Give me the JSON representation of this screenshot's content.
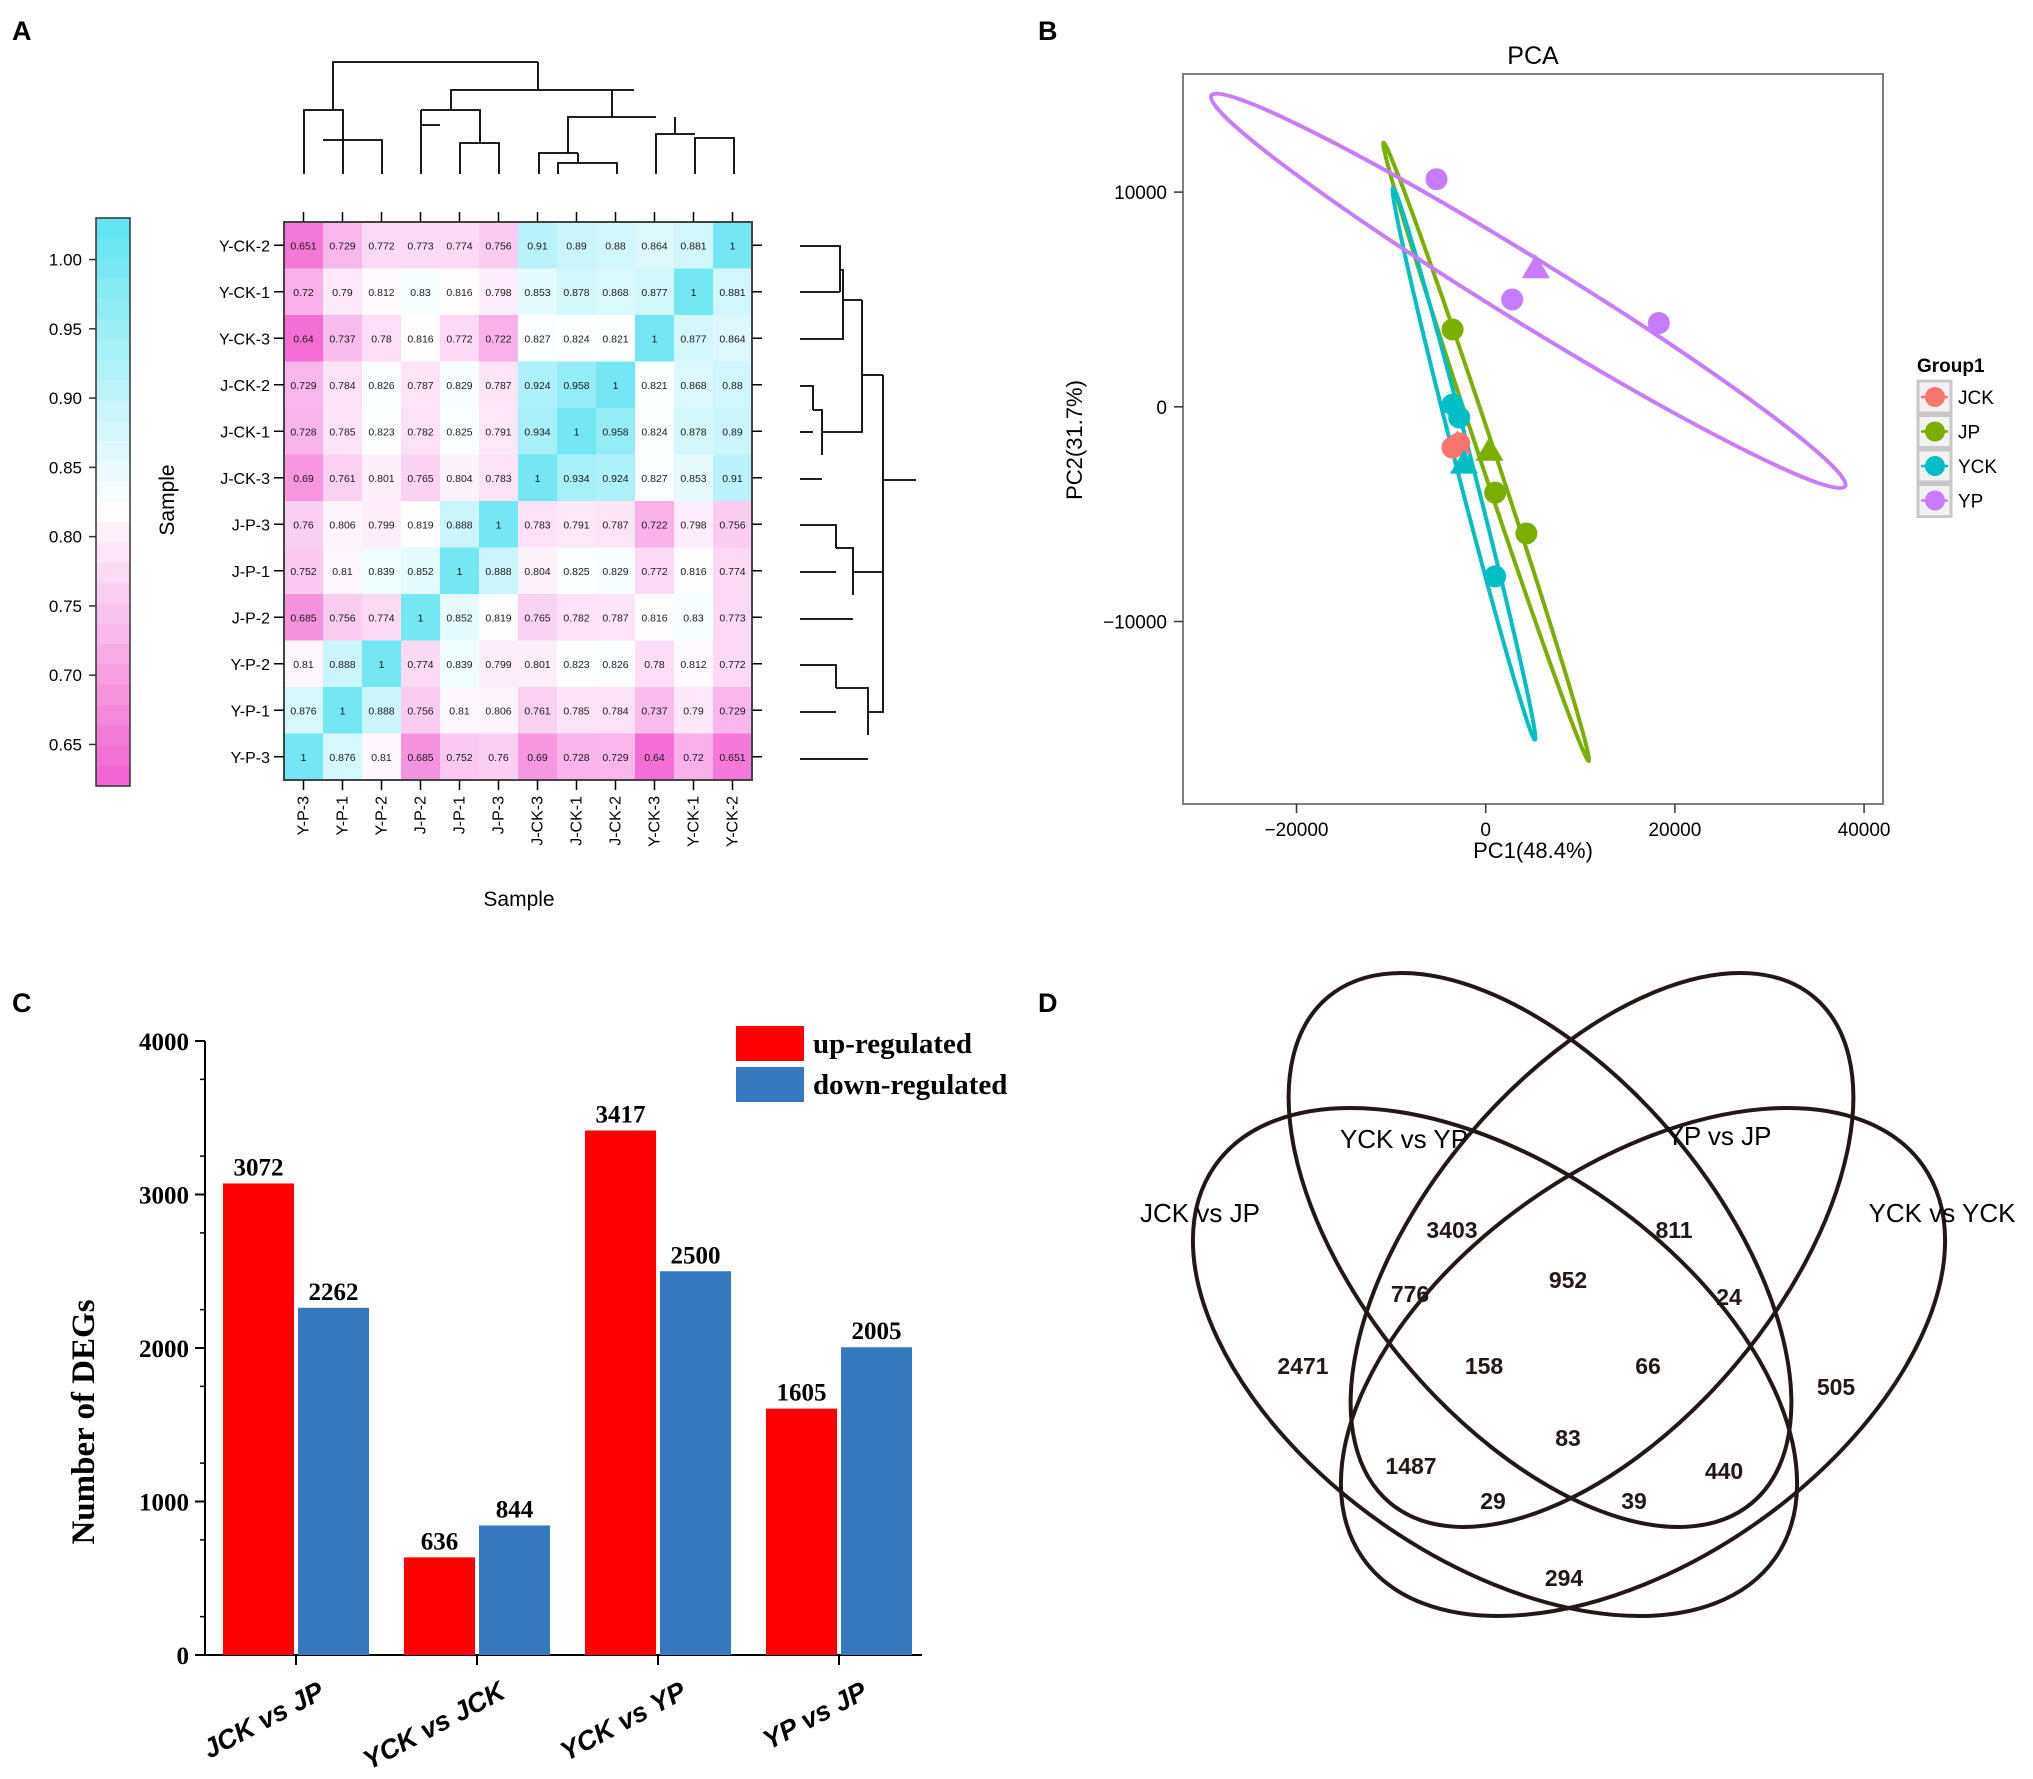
{
  "panels": {
    "a": {
      "label": "A"
    },
    "b": {
      "label": "B"
    },
    "c": {
      "label": "C"
    },
    "d": {
      "label": "D"
    }
  },
  "chart_data": [
    {
      "panel": "A",
      "type": "heatmap",
      "title": "",
      "xlabel": "Sample",
      "ylabel": "Sample",
      "row_labels": [
        "Y-CK-2",
        "Y-CK-1",
        "Y-CK-3",
        "J-CK-2",
        "J-CK-1",
        "J-CK-3",
        "J-P-3",
        "J-P-1",
        "J-P-2",
        "Y-P-2",
        "Y-P-1",
        "Y-P-3"
      ],
      "col_labels": [
        "Y-P-3",
        "Y-P-1",
        "Y-P-2",
        "J-P-2",
        "J-P-1",
        "J-P-3",
        "J-CK-3",
        "J-CK-1",
        "J-CK-2",
        "Y-CK-3",
        "Y-CK-1",
        "Y-CK-2"
      ],
      "values": [
        [
          "0.651",
          "0.729",
          "0.772",
          "0.773",
          "0.774",
          "0.756",
          "0.91",
          "0.89",
          "0.88",
          "0.864",
          "0.881",
          "1"
        ],
        [
          "0.72",
          "0.79",
          "0.812",
          "0.83",
          "0.816",
          "0.798",
          "0.853",
          "0.878",
          "0.868",
          "0.877",
          "1",
          "0.881"
        ],
        [
          "0.64",
          "0.737",
          "0.78",
          "0.816",
          "0.772",
          "0.722",
          "0.827",
          "0.824",
          "0.821",
          "1",
          "0.877",
          "0.864"
        ],
        [
          "0.729",
          "0.784",
          "0.826",
          "0.787",
          "0.829",
          "0.787",
          "0.924",
          "0.958",
          "1",
          "0.821",
          "0.868",
          "0.88"
        ],
        [
          "0.728",
          "0.785",
          "0.823",
          "0.782",
          "0.825",
          "0.791",
          "0.934",
          "1",
          "0.958",
          "0.824",
          "0.878",
          "0.89"
        ],
        [
          "0.69",
          "0.761",
          "0.801",
          "0.765",
          "0.804",
          "0.783",
          "1",
          "0.934",
          "0.924",
          "0.827",
          "0.853",
          "0.91"
        ],
        [
          "0.76",
          "0.806",
          "0.799",
          "0.819",
          "0.888",
          "1",
          "0.783",
          "0.791",
          "0.787",
          "0.722",
          "0.798",
          "0.756"
        ],
        [
          "0.752",
          "0.81",
          "0.839",
          "0.852",
          "1",
          "0.888",
          "0.804",
          "0.825",
          "0.829",
          "0.772",
          "0.816",
          "0.774"
        ],
        [
          "0.685",
          "0.756",
          "0.774",
          "1",
          "0.852",
          "0.819",
          "0.765",
          "0.782",
          "0.787",
          "0.816",
          "0.83",
          "0.773"
        ],
        [
          "0.81",
          "0.888",
          "1",
          "0.774",
          "0.839",
          "0.799",
          "0.801",
          "0.823",
          "0.826",
          "0.78",
          "0.812",
          "0.772"
        ],
        [
          "0.876",
          "1",
          "0.888",
          "0.756",
          "0.81",
          "0.806",
          "0.761",
          "0.785",
          "0.784",
          "0.737",
          "0.79",
          "0.729"
        ],
        [
          "1",
          "0.876",
          "0.81",
          "0.685",
          "0.752",
          "0.76",
          "0.69",
          "0.728",
          "0.729",
          "0.64",
          "0.72",
          "0.651"
        ]
      ],
      "colorbar": {
        "ticks": [
          "1.00",
          "0.95",
          "0.90",
          "0.85",
          "0.80",
          "0.75",
          "0.70",
          "0.65"
        ],
        "range": [
          0.62,
          1.03
        ],
        "low_color": "#f25fd0",
        "mid_color": "#ffffff",
        "high_color": "#5ce4f2"
      }
    },
    {
      "panel": "B",
      "type": "scatter",
      "title": "PCA",
      "xlabel": "PC1(48.4%)",
      "ylabel": "PC2(31.7%)",
      "xlim": [
        -32000,
        42000
      ],
      "ylim": [
        -18500,
        15500
      ],
      "x_ticks": [
        -20000,
        0,
        20000,
        40000
      ],
      "x_tick_labels": [
        "−20000",
        "0",
        "20000",
        "40000"
      ],
      "y_ticks": [
        10000,
        0,
        -10000
      ],
      "y_tick_labels": [
        "10000",
        "0",
        "−10000"
      ],
      "legend_title": "Group1",
      "series": [
        {
          "name": "JCK",
          "color": "#f8766d",
          "points": [
            [
              -3200,
              -1800
            ],
            [
              -2800,
              -1700
            ],
            [
              -3500,
              -1900
            ]
          ],
          "centroid": [
            -3000,
            -1700
          ],
          "ellipse": []
        },
        {
          "name": "JP",
          "color": "#7cae00",
          "points": [
            [
              -3500,
              3600
            ],
            [
              1000,
              -4000
            ],
            [
              4300,
              -5900
            ]
          ],
          "centroid": [
            400,
            -2000
          ],
          "ellipse": [
            [
              -10800,
              12300
            ],
            [
              -4200,
              4100
            ],
            [
              10900,
              -16500
            ]
          ]
        },
        {
          "name": "YCK",
          "color": "#00bfc4",
          "points": [
            [
              -3500,
              100
            ],
            [
              -2800,
              -500
            ],
            [
              1000,
              -7900
            ]
          ],
          "centroid": [
            -2300,
            -2600
          ],
          "ellipse": [
            [
              -9800,
              10200
            ],
            [
              -6200,
              3000
            ],
            [
              5200,
              -15500
            ]
          ]
        },
        {
          "name": "YP",
          "color": "#c77cff",
          "points": [
            [
              -5200,
              10600
            ],
            [
              2800,
              5000
            ],
            [
              18300,
              3900
            ]
          ],
          "centroid": [
            5300,
            6500
          ],
          "ellipse": [
            [
              -29000,
              14500
            ],
            [
              5000,
              7000
            ],
            [
              38000,
              -3700
            ]
          ]
        }
      ]
    },
    {
      "panel": "C",
      "type": "bar",
      "title": "",
      "xlabel": "",
      "ylabel": "Number of  DEGs",
      "ylim": [
        0,
        4000
      ],
      "y_ticks": [
        0,
        1000,
        2000,
        3000,
        4000
      ],
      "categories": [
        "JCK vs JP",
        "YCK vs JCK",
        "YCK vs YP",
        "YP vs JP"
      ],
      "series": [
        {
          "name": "up-regulated",
          "color": "#ff0000",
          "values": [
            3072,
            636,
            3417,
            1605
          ]
        },
        {
          "name": "down-regulated",
          "color": "#3779be",
          "values": [
            2262,
            844,
            2500,
            2005
          ]
        }
      ]
    },
    {
      "panel": "D",
      "type": "venn",
      "sets": [
        "JCK vs JP",
        "YCK vs YP",
        "YP vs JP",
        "YCK vs YCK"
      ],
      "regions": [
        {
          "key": "A",
          "value": "2471"
        },
        {
          "key": "B",
          "value": "3403"
        },
        {
          "key": "C",
          "value": "811"
        },
        {
          "key": "D",
          "value": "505"
        },
        {
          "key": "AB",
          "value": "776"
        },
        {
          "key": "BC",
          "value": "952"
        },
        {
          "key": "CD",
          "value": "24"
        },
        {
          "key": "ABC",
          "value": "158"
        },
        {
          "key": "BCD",
          "value": "66"
        },
        {
          "key": "AC",
          "value": "1487"
        },
        {
          "key": "ABCD",
          "value": "83"
        },
        {
          "key": "BD",
          "value": "440"
        },
        {
          "key": "ACD",
          "value": "29"
        },
        {
          "key": "ABD",
          "value": "39"
        },
        {
          "key": "AD",
          "value": "294"
        }
      ]
    }
  ]
}
